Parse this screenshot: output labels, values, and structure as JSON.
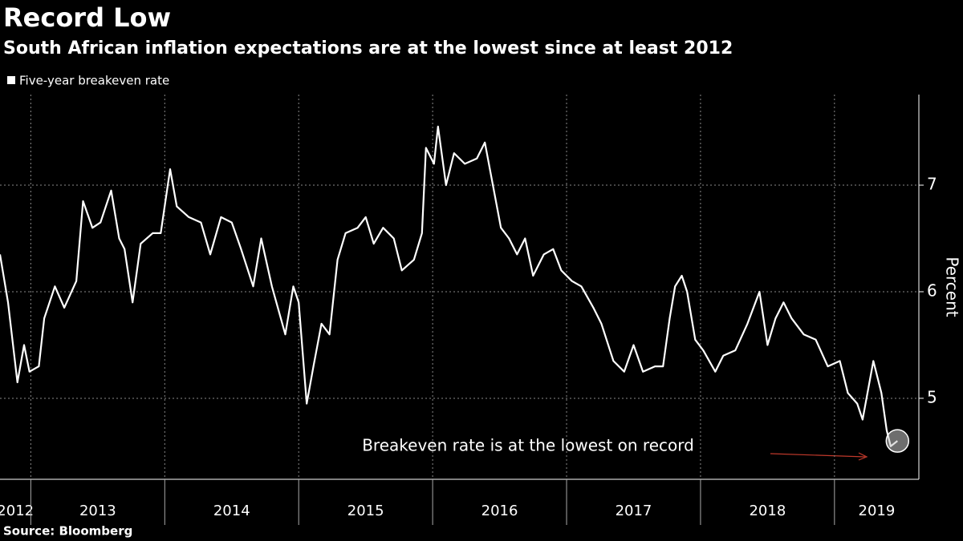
{
  "chart_data": {
    "type": "line",
    "title": "Record Low",
    "subtitle": "South African inflation expectations are at the lowest since at least 2012",
    "y_label": "Percent",
    "source": "Source: Bloomberg",
    "annotation": "Breakeven rate is at the lowest on record",
    "x": [
      2012.77,
      2012.83,
      2012.9,
      2012.95,
      2012.99,
      2013.06,
      2013.1,
      2013.18,
      2013.25,
      2013.34,
      2013.39,
      2013.46,
      2013.52,
      2013.6,
      2013.66,
      2013.7,
      2013.76,
      2013.82,
      2013.91,
      2013.97,
      2014.04,
      2014.09,
      2014.18,
      2014.27,
      2014.34,
      2014.42,
      2014.5,
      2014.57,
      2014.66,
      2014.72,
      2014.8,
      2014.9,
      2014.96,
      2015.0,
      2015.06,
      2015.11,
      2015.17,
      2015.23,
      2015.29,
      2015.35,
      2015.44,
      2015.5,
      2015.56,
      2015.63,
      2015.71,
      2015.77,
      2015.86,
      2015.92,
      2015.95,
      2016.01,
      2016.04,
      2016.1,
      2016.16,
      2016.24,
      2016.33,
      2016.39,
      2016.45,
      2016.51,
      2016.57,
      2016.63,
      2016.69,
      2016.75,
      2016.83,
      2016.9,
      2016.96,
      2017.04,
      2017.11,
      2017.2,
      2017.26,
      2017.35,
      2017.43,
      2017.5,
      2017.57,
      2017.66,
      2017.72,
      2017.77,
      2017.81,
      2017.86,
      2017.9,
      2017.96,
      2018.02,
      2018.11,
      2018.17,
      2018.26,
      2018.35,
      2018.44,
      2018.5,
      2018.56,
      2018.62,
      2018.68,
      2018.77,
      2018.86,
      2018.95,
      2019.04,
      2019.1,
      2019.17,
      2019.21,
      2019.29,
      2019.35,
      2019.39,
      2019.42,
      2019.47
    ],
    "series": [
      {
        "name": "Five-year breakeven rate",
        "color": "#ffffff",
        "values": [
          6.35,
          5.9,
          5.15,
          5.5,
          5.25,
          5.3,
          5.75,
          6.05,
          5.85,
          6.1,
          6.85,
          6.6,
          6.65,
          6.95,
          6.5,
          6.4,
          5.9,
          6.45,
          6.55,
          6.55,
          7.15,
          6.8,
          6.7,
          6.65,
          6.35,
          6.7,
          6.65,
          6.4,
          6.05,
          6.5,
          6.05,
          5.6,
          6.05,
          5.9,
          4.95,
          5.3,
          5.7,
          5.6,
          6.3,
          6.55,
          6.6,
          6.7,
          6.45,
          6.6,
          6.5,
          6.2,
          6.3,
          6.55,
          7.35,
          7.2,
          7.55,
          7.0,
          7.3,
          7.2,
          7.25,
          7.4,
          7.0,
          6.6,
          6.5,
          6.35,
          6.5,
          6.15,
          6.35,
          6.4,
          6.2,
          6.1,
          6.05,
          5.85,
          5.7,
          5.35,
          5.25,
          5.5,
          5.25,
          5.3,
          5.3,
          5.75,
          6.05,
          6.15,
          6.0,
          5.55,
          5.45,
          5.25,
          5.4,
          5.45,
          5.7,
          6.0,
          5.5,
          5.75,
          5.9,
          5.75,
          5.6,
          5.55,
          5.3,
          5.35,
          5.05,
          4.95,
          4.8,
          5.35,
          5.05,
          4.7,
          4.55,
          4.6
        ]
      }
    ],
    "xlim": [
      2012.77,
      2019.63
    ],
    "xticks": [
      2012,
      2013,
      2014,
      2015,
      2016,
      2017,
      2018,
      2019
    ],
    "ylim": [
      4.24,
      7.85
    ],
    "yticks": [
      5,
      6,
      7
    ],
    "grid": true
  }
}
